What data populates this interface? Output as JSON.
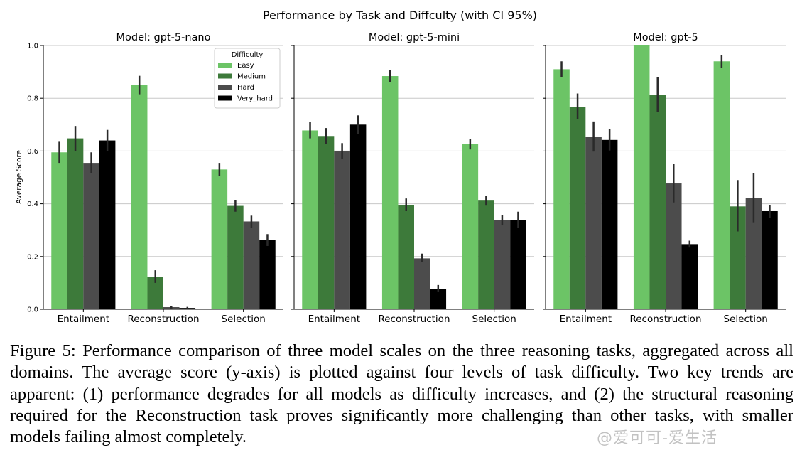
{
  "figure_title": "Performance by Task and Diffculty (with CI 95%)",
  "caption": "Figure 5: Performance comparison of three model scales on the three reasoning tasks, aggregated across all domains. The average score (y-axis) is plotted against four levels of task difficulty. Two key trends are apparent: (1) performance degrades for all models as difficulty increases, and (2) the structural reasoning required for the Reconstruction task proves significantly more challenging than other tasks, with smaller models failing almost completely.",
  "watermark": "@爱可可-爱生活",
  "colors": {
    "Easy": "#6cc466",
    "Medium": "#3d7a3a",
    "Hard": "#4c4c4c",
    "Very_hard": "#000000",
    "grid": "#c8c8c8",
    "errorbar": "#2a2a2a"
  },
  "chart_data": [
    {
      "type": "bar",
      "title": "Model: gpt-5-nano",
      "ylabel": "Average Score",
      "ylim": [
        0,
        1.0
      ],
      "yticks": [
        "0.0",
        "0.2",
        "0.4",
        "0.6",
        "0.8",
        "1.0"
      ],
      "grid": true,
      "categories": [
        "Entailment",
        "Reconstruction",
        "Selection"
      ],
      "legend": {
        "title": "Difficulty",
        "placement": "top-right",
        "entries": [
          "Easy",
          "Medium",
          "Hard",
          "Very_hard"
        ]
      },
      "series": [
        {
          "name": "Easy",
          "values": [
            0.595,
            0.85,
            0.53
          ],
          "ci": [
            [
              0.555,
              0.635
            ],
            [
              0.815,
              0.885
            ],
            [
              0.505,
              0.555
            ]
          ]
        },
        {
          "name": "Medium",
          "values": [
            0.648,
            0.123,
            0.392
          ],
          "ci": [
            [
              0.6,
              0.695
            ],
            [
              0.1,
              0.148
            ],
            [
              0.37,
              0.415
            ]
          ]
        },
        {
          "name": "Hard",
          "values": [
            0.555,
            0.008,
            0.333
          ],
          "ci": [
            [
              0.515,
              0.595
            ],
            [
              0.003,
              0.013
            ],
            [
              0.31,
              0.355
            ]
          ]
        },
        {
          "name": "Very_hard",
          "values": [
            0.64,
            0.005,
            0.263
          ],
          "ci": [
            [
              0.6,
              0.68
            ],
            [
              0.001,
              0.009
            ],
            [
              0.24,
              0.285
            ]
          ]
        }
      ]
    },
    {
      "type": "bar",
      "title": "Model: gpt-5-mini",
      "ylim": [
        0,
        1.0
      ],
      "grid": true,
      "categories": [
        "Entailment",
        "Reconstruction",
        "Selection"
      ],
      "series": [
        {
          "name": "Easy",
          "values": [
            0.678,
            0.884,
            0.626
          ],
          "ci": [
            [
              0.648,
              0.71
            ],
            [
              0.862,
              0.908
            ],
            [
              0.606,
              0.646
            ]
          ]
        },
        {
          "name": "Medium",
          "values": [
            0.657,
            0.395,
            0.412
          ],
          "ci": [
            [
              0.628,
              0.687
            ],
            [
              0.372,
              0.42
            ],
            [
              0.393,
              0.43
            ]
          ]
        },
        {
          "name": "Hard",
          "values": [
            0.6,
            0.193,
            0.337
          ],
          "ci": [
            [
              0.57,
              0.63
            ],
            [
              0.178,
              0.211
            ],
            [
              0.318,
              0.357
            ]
          ]
        },
        {
          "name": "Very_hard",
          "values": [
            0.7,
            0.077,
            0.338
          ],
          "ci": [
            [
              0.665,
              0.735
            ],
            [
              0.065,
              0.092
            ],
            [
              0.31,
              0.37
            ]
          ]
        }
      ]
    },
    {
      "type": "bar",
      "title": "Model: gpt-5",
      "ylim": [
        0,
        1.0
      ],
      "grid": true,
      "categories": [
        "Entailment",
        "Reconstruction",
        "Selection"
      ],
      "series": [
        {
          "name": "Easy",
          "values": [
            0.91,
            1.0,
            0.94
          ],
          "ci": [
            [
              0.88,
              0.94
            ],
            [
              1.0,
              1.0
            ],
            [
              0.915,
              0.965
            ]
          ]
        },
        {
          "name": "Medium",
          "values": [
            0.768,
            0.812,
            0.39
          ],
          "ci": [
            [
              0.72,
              0.818
            ],
            [
              0.748,
              0.88
            ],
            [
              0.295,
              0.49
            ]
          ]
        },
        {
          "name": "Hard",
          "values": [
            0.655,
            0.477,
            0.422
          ],
          "ci": [
            [
              0.598,
              0.712
            ],
            [
              0.405,
              0.55
            ],
            [
              0.33,
              0.515
            ]
          ]
        },
        {
          "name": "Very_hard",
          "values": [
            0.642,
            0.247,
            0.372
          ],
          "ci": [
            [
              0.602,
              0.683
            ],
            [
              0.234,
              0.26
            ],
            [
              0.345,
              0.396
            ]
          ]
        }
      ]
    }
  ]
}
